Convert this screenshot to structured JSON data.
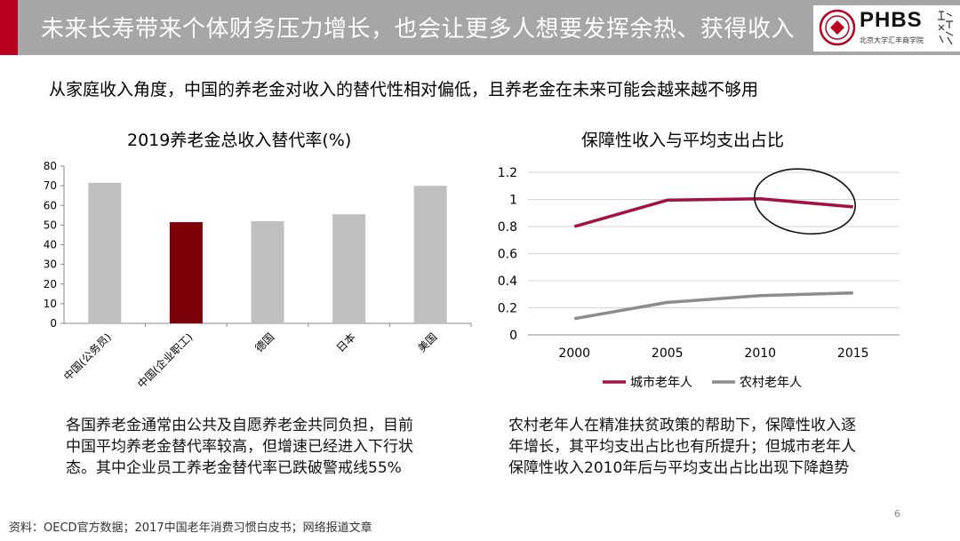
{
  "header": {
    "title": "未来长寿带来个体财务压力增长，也会让更多人想要发挥余热、获得收入",
    "logo_text": "PHBS",
    "logo_subtext": "北京大学汇丰商学院",
    "colors": {
      "accent": "#b8001f",
      "bar": "#a7a6a6"
    }
  },
  "subtitle": "从家庭收入角度，中国的养老金对收入的替代性相对偏低，且养老金在未来可能会越来越不够用",
  "chart_data": [
    {
      "type": "bar",
      "title": "2019养老金总收入替代率(%)",
      "categories": [
        "中国(公务员)",
        "中国(企业职工)",
        "德国",
        "日本",
        "美国"
      ],
      "values": [
        71.5,
        51.5,
        52,
        55.5,
        70
      ],
      "highlight_index": 1,
      "colors": {
        "default": "#c0c0c0",
        "highlight": "#7b0008"
      },
      "ylim": [
        0,
        80
      ],
      "yticks": [
        0,
        10,
        20,
        30,
        40,
        50,
        60,
        70,
        80
      ],
      "grid": false
    },
    {
      "type": "line",
      "title": "保障性收入与平均支出占比",
      "x": [
        "2000",
        "2005",
        "2010",
        "2015"
      ],
      "series": [
        {
          "name": "城市老年人",
          "values": [
            0.8,
            0.995,
            1.005,
            0.945
          ],
          "color": "#a3123f"
        },
        {
          "name": "农村老年人",
          "values": [
            0.12,
            0.24,
            0.29,
            0.31
          ],
          "color": "#8c8c8c"
        }
      ],
      "ylim": [
        0,
        1.2
      ],
      "yticks": [
        "0",
        "0.2",
        "0.4",
        "0.6",
        "0.8",
        "1",
        "1.2"
      ],
      "grid": true,
      "legend_position": "bottom",
      "annotation": "ellipse around the 2010–2015 segment of 城市老年人"
    }
  ],
  "descriptions": {
    "left": [
      "各国养老金通常由公共及自愿养老金共同负担，目前",
      "中国平均养老金替代率较高，但增速已经进入下行状",
      "态。其中企业员工养老金替代率已跌破警戒线55%"
    ],
    "right": [
      "农村老年人在精准扶贫政策的帮助下，保障性收入逐",
      "年增长，其平均支出占比也有所提升；但城市老年人",
      "保障性收入2010年后与平均支出占比出现下降趋势"
    ]
  },
  "source": "资料：OECD官方数据；2017中国老年消费习惯白皮书；网络报道文章",
  "page_number": "6"
}
